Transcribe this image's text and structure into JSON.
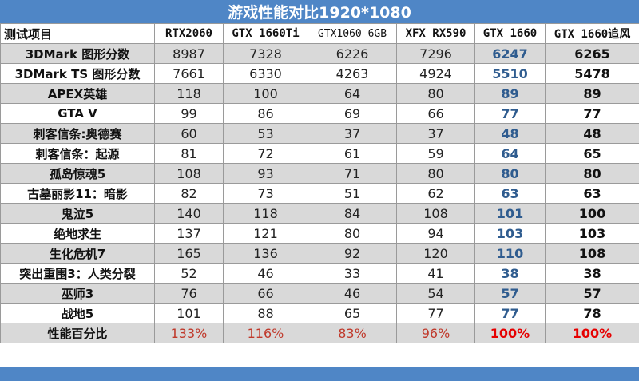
{
  "title": "游戏性能对比1920*1080",
  "header": {
    "test_item": "测试项目",
    "cols": [
      "RTX2060",
      "GTX 1660Ti",
      "GTX1060 6GB",
      "XFX RX590",
      "GTX 1660",
      "GTX 1660追风"
    ]
  },
  "rows": [
    {
      "label": "3DMark 图形分数",
      "values": [
        "8987",
        "7328",
        "6226",
        "7296",
        "6247",
        "6265"
      ]
    },
    {
      "label": "3DMark TS 图形分数",
      "values": [
        "7661",
        "6330",
        "4263",
        "4924",
        "5510",
        "5478"
      ]
    },
    {
      "label": "APEX英雄",
      "values": [
        "118",
        "100",
        "64",
        "80",
        "89",
        "89"
      ]
    },
    {
      "label": "GTA V",
      "values": [
        "99",
        "86",
        "69",
        "66",
        "77",
        "77"
      ]
    },
    {
      "label": "刺客信条:奥德赛",
      "values": [
        "60",
        "53",
        "37",
        "37",
        "48",
        "48"
      ]
    },
    {
      "label": "刺客信条：起源",
      "values": [
        "81",
        "72",
        "61",
        "59",
        "64",
        "65"
      ]
    },
    {
      "label": "孤岛惊魂5",
      "values": [
        "108",
        "93",
        "71",
        "80",
        "80",
        "80"
      ]
    },
    {
      "label": "古墓丽影11：暗影",
      "values": [
        "82",
        "73",
        "51",
        "62",
        "63",
        "63"
      ]
    },
    {
      "label": "鬼泣5",
      "values": [
        "140",
        "118",
        "84",
        "108",
        "101",
        "100"
      ]
    },
    {
      "label": "绝地求生",
      "values": [
        "137",
        "121",
        "80",
        "94",
        "103",
        "103"
      ]
    },
    {
      "label": "生化危机7",
      "values": [
        "165",
        "136",
        "92",
        "120",
        "110",
        "108"
      ]
    },
    {
      "label": "突出重围3：人类分裂",
      "values": [
        "52",
        "46",
        "33",
        "41",
        "38",
        "38"
      ]
    },
    {
      "label": "巫师3",
      "values": [
        "76",
        "66",
        "46",
        "54",
        "57",
        "57"
      ]
    },
    {
      "label": "战地5",
      "values": [
        "101",
        "88",
        "65",
        "77",
        "77",
        "78"
      ]
    },
    {
      "label": "性能百分比",
      "values": [
        "133%",
        "116%",
        "83%",
        "96%",
        "100%",
        "100%"
      ]
    }
  ]
}
